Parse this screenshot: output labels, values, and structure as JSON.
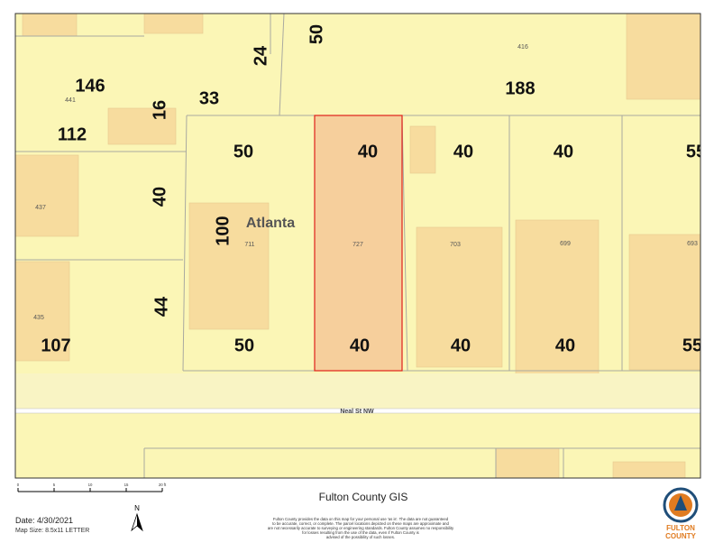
{
  "map": {
    "dimensions": [
      "50",
      "24",
      "146",
      "33",
      "188",
      "16",
      "112",
      "50",
      "40",
      "40",
      "40",
      "55",
      "40",
      "100",
      "44",
      "107",
      "50",
      "40",
      "40",
      "40",
      "55"
    ],
    "addresses": [
      "441",
      "416",
      "437",
      "711",
      "727",
      "703",
      "699",
      "693",
      "435"
    ],
    "place": "Atlanta",
    "street": "Neal St NW"
  },
  "footer": {
    "title": "Fulton County GIS",
    "date": "Date: 4/30/2021",
    "map_size": "Map Size: 8.5x11 LETTER",
    "scale_labels": [
      "0",
      "5",
      "10",
      "15",
      "20 ft"
    ],
    "north": "N",
    "disclaimer": [
      "Fulton County provides the data on this map for your personal use 'as is'. The data are not guaranteed",
      "to be accurate, correct, or complete. The parcel locations depicted on these maps are approximate and",
      "are not necessarily accurate to surveying or engineering standards. Fulton County assumes no responsibility",
      "for losses resulting from the use of the data, even if Fulton County is",
      "advised of the possibility of such losses."
    ],
    "logo": [
      "FULTON",
      "COUNTY"
    ]
  }
}
